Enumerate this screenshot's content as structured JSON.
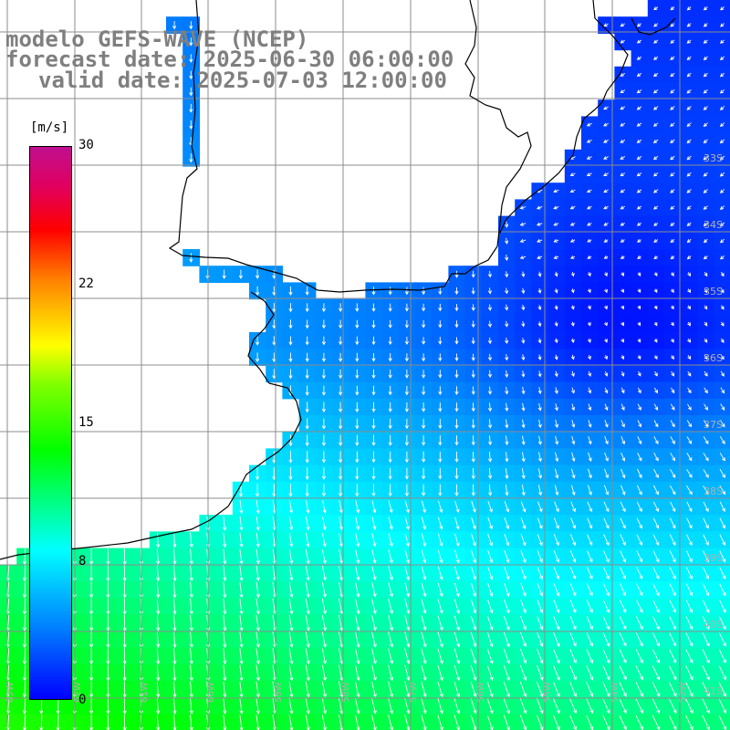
{
  "title": {
    "line1": "modelo GEFS-WAVE (NCEP)",
    "line2": "forecast date: 2025-06-30 06:00:00",
    "line3": "valid date: 2025-07-03 12:00:00"
  },
  "colorbar": {
    "unit": "[m/s]",
    "ticks": [
      {
        "label": "30",
        "value": 30
      },
      {
        "label": "22",
        "value": 22
      },
      {
        "label": "15",
        "value": 15
      },
      {
        "label": "8",
        "value": 8
      },
      {
        "label": "0",
        "value": 0
      }
    ],
    "min": 0,
    "max": 30
  },
  "map": {
    "lat_labels": [
      "33S",
      "34S",
      "35S",
      "36S",
      "37S",
      "38S",
      "39S",
      "40S",
      "41S"
    ],
    "lon_labels": [
      "63W",
      "62W",
      "61W",
      "60W",
      "59W",
      "58W",
      "57W",
      "56W",
      "55W",
      "54W",
      "53W"
    ],
    "wind_field": {
      "description_units": "m/s",
      "dominant_direction": "north-to-south (blowing southward), turning toward southeast over the open ocean",
      "max_speed_southwest": 12,
      "min_speed_offshore_east": 1
    },
    "colors": {
      "land": "#ffffff",
      "coast": "#000000",
      "grid": "#8c8c8c",
      "arrow": "#ffffff"
    }
  }
}
